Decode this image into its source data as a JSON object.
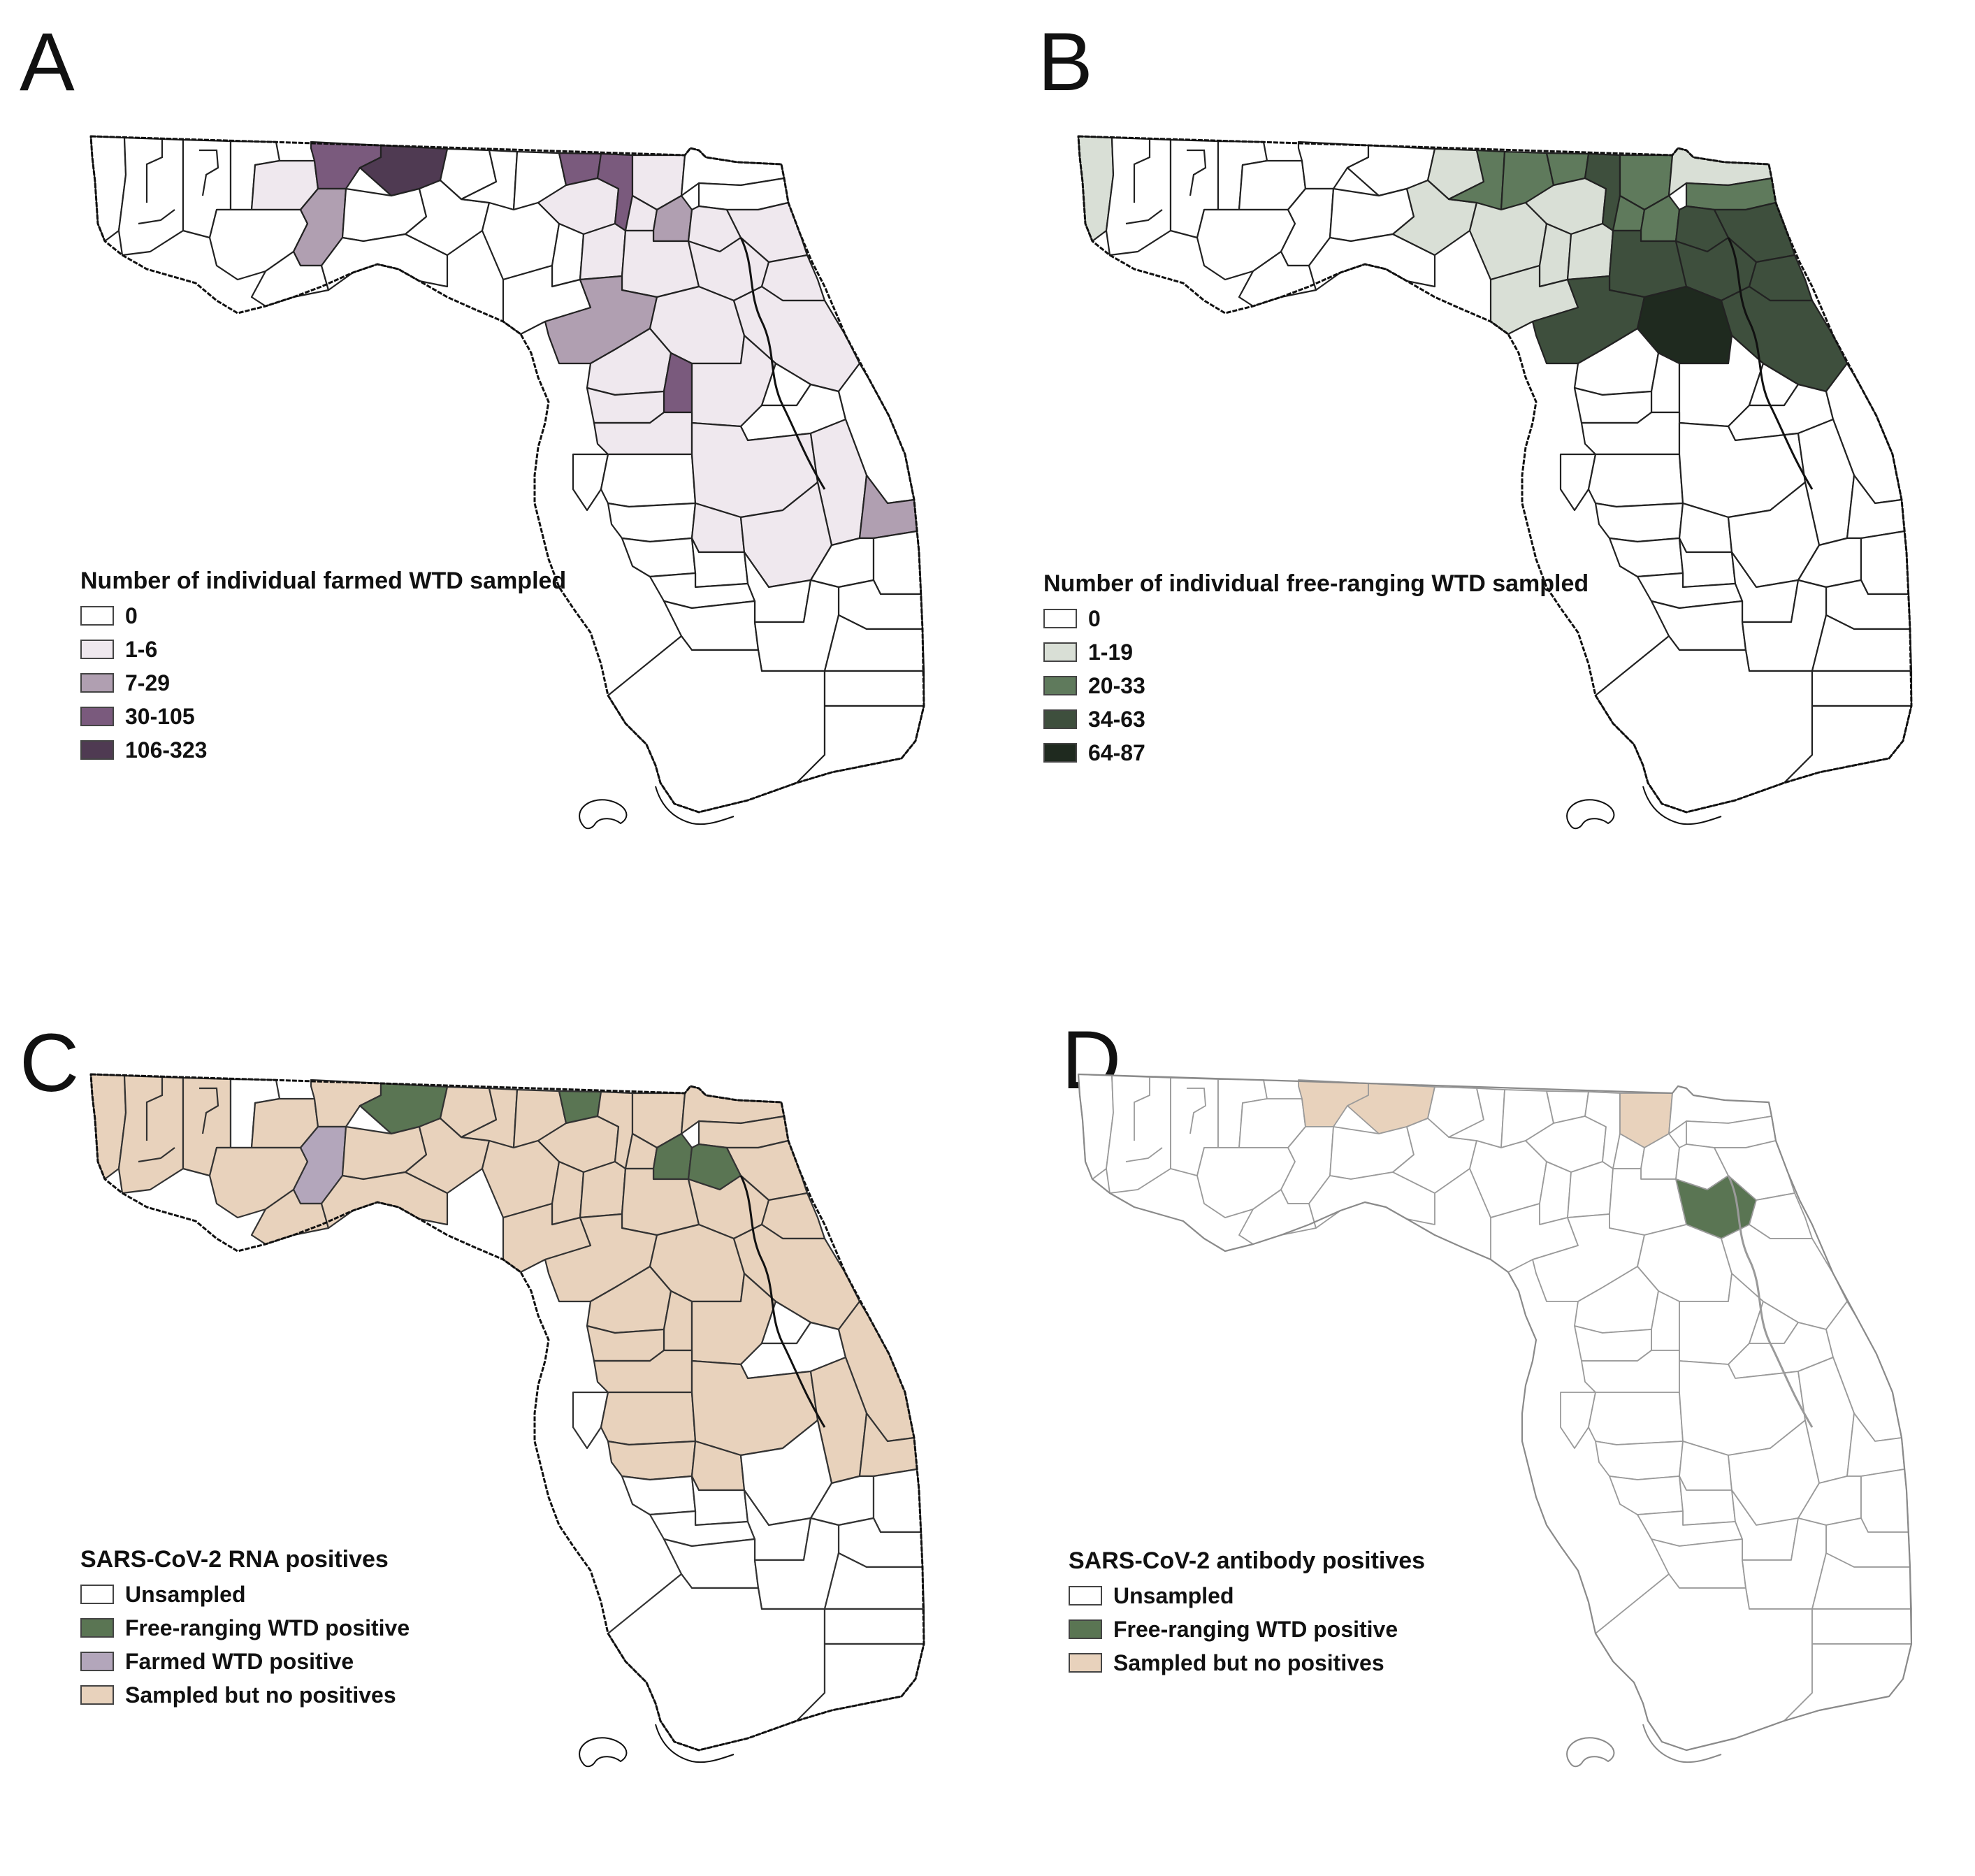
{
  "panels": [
    {
      "letter": "A",
      "legend": {
        "title": "Number of individual farmed WTD sampled",
        "items": [
          {
            "label": "0",
            "color": "#ffffff"
          },
          {
            "label": "1-6",
            "color": "#efe8ee"
          },
          {
            "label": "7-29",
            "color": "#b09fb1"
          },
          {
            "label": "30-105",
            "color": "#7a5a7d"
          },
          {
            "label": "106-323",
            "color": "#4f3a52"
          }
        ]
      }
    },
    {
      "letter": "B",
      "legend": {
        "title": "Number of individual free-ranging WTD sampled",
        "items": [
          {
            "label": "0",
            "color": "#ffffff"
          },
          {
            "label": "1-19",
            "color": "#d9dfd6"
          },
          {
            "label": "20-33",
            "color": "#5f7a5c"
          },
          {
            "label": "34-63",
            "color": "#3e4f3d"
          },
          {
            "label": "64-87",
            "color": "#1f2a1f"
          }
        ]
      }
    },
    {
      "letter": "C",
      "legend": {
        "title": "SARS-CoV-2 RNA positives",
        "items": [
          {
            "label": "Unsampled",
            "color": "#ffffff"
          },
          {
            "label": "Free-ranging WTD positive",
            "color": "#5a7553"
          },
          {
            "label": "Farmed WTD positive",
            "color": "#b3a6bb"
          },
          {
            "label": "Sampled but no positives",
            "color": "#e8d2bc"
          }
        ]
      }
    },
    {
      "letter": "D",
      "legend": {
        "title": "SARS-CoV-2 antibody positives",
        "items": [
          {
            "label": "Unsampled",
            "color": "#ffffff"
          },
          {
            "label": "Free-ranging WTD positive",
            "color": "#5a7553"
          },
          {
            "label": "Sampled but no positives",
            "color": "#e8d2bc"
          }
        ]
      }
    }
  ]
}
